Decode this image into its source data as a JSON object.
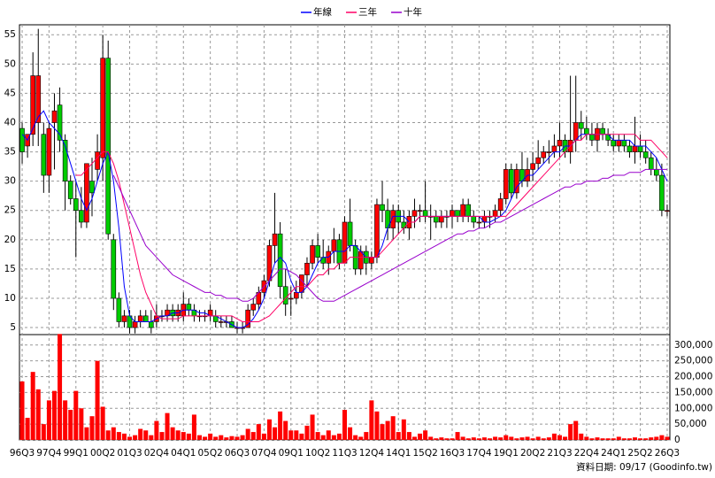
{
  "chart_data": {
    "type": "candlestick",
    "series": [
      {
        "name": "年線",
        "color": "#0000ff",
        "values": [
          38,
          37,
          39,
          41,
          42,
          40,
          39,
          38,
          36,
          33,
          30,
          27,
          25,
          27,
          30,
          33,
          35,
          30,
          22,
          12,
          7,
          6,
          6,
          6,
          6,
          6.5,
          7,
          7,
          7.5,
          7.5,
          8,
          8,
          8,
          7.5,
          7.5,
          7,
          7,
          6.5,
          6,
          5.5,
          5,
          5,
          5.5,
          6.5,
          8,
          10,
          13,
          16,
          17,
          16,
          13,
          11,
          11,
          12,
          14,
          16,
          17,
          17,
          18,
          18,
          18,
          19,
          19,
          18,
          17,
          17,
          17,
          19,
          22,
          24,
          24,
          24,
          23,
          23,
          24,
          24,
          24,
          24,
          24,
          24,
          24,
          24,
          24,
          24,
          24,
          24,
          23,
          23,
          23.5,
          24,
          25,
          27,
          29,
          30,
          31,
          31,
          32,
          33,
          34,
          35,
          35,
          36,
          36,
          37,
          38,
          38,
          38,
          38,
          38,
          38,
          37,
          37,
          37,
          37,
          36,
          36,
          36,
          35,
          34,
          32,
          30
        ]
      },
      {
        "name": "三年",
        "color": "#ff0066",
        "values": [
          null,
          null,
          null,
          null,
          null,
          null,
          null,
          null,
          null,
          null,
          31,
          31,
          32,
          33,
          34,
          35,
          35,
          33,
          30,
          26,
          22,
          18,
          14,
          11,
          9,
          7,
          6.5,
          6.5,
          6.5,
          6.5,
          7,
          7,
          7,
          7,
          7,
          7,
          7,
          7,
          7,
          7,
          6.5,
          6,
          6,
          6,
          6,
          6.5,
          7,
          8,
          9,
          10,
          11,
          12,
          12,
          12,
          13,
          14,
          14,
          15,
          15,
          16,
          16,
          17,
          17,
          17,
          17,
          17,
          17,
          18,
          19,
          20,
          21,
          22,
          23,
          23,
          24,
          24,
          24,
          24,
          24,
          24,
          24,
          24,
          24,
          24,
          24,
          24,
          24,
          24,
          24,
          24,
          24,
          25,
          26,
          27,
          28,
          29,
          30,
          31,
          32,
          33,
          34,
          35,
          36,
          37,
          37,
          38,
          38,
          38,
          38,
          38,
          38,
          38,
          38,
          38,
          38,
          37,
          37,
          37,
          36,
          35,
          34
        ]
      },
      {
        "name": "十年",
        "color": "#9900cc",
        "values": [
          null,
          null,
          null,
          null,
          null,
          null,
          null,
          null,
          null,
          null,
          null,
          null,
          null,
          null,
          null,
          null,
          null,
          31,
          29,
          27,
          25,
          23,
          21,
          19,
          18,
          17,
          16,
          15,
          14,
          13.5,
          13,
          12.5,
          12,
          11.5,
          11,
          11,
          10.5,
          10.5,
          10,
          10,
          10,
          9.5,
          9.5,
          10,
          11,
          12,
          13,
          14,
          15,
          15,
          14.5,
          14,
          13,
          12,
          11,
          10,
          9.5,
          9.5,
          9.5,
          10,
          10.5,
          11,
          11.5,
          12,
          12.5,
          13,
          13.5,
          14,
          14.5,
          15,
          15.5,
          16,
          16.5,
          17,
          17.5,
          18,
          18.5,
          19,
          19.5,
          20,
          20.5,
          21,
          21,
          21.5,
          21.5,
          22,
          22,
          22.5,
          23,
          23,
          23.5,
          24,
          24.5,
          25,
          25.5,
          26,
          26.5,
          27,
          27.5,
          28,
          28.5,
          29,
          29,
          29.5,
          29.5,
          30,
          30,
          30,
          30.5,
          30.5,
          31,
          31,
          31,
          31.5,
          31.5,
          31.5,
          32,
          32,
          32,
          32,
          32
        ]
      }
    ],
    "categories": [
      "96Q3",
      null,
      null,
      null,
      null,
      "97Q4",
      null,
      null,
      null,
      null,
      "99Q1",
      null,
      null,
      null,
      null,
      "00Q2",
      null,
      null,
      null,
      null,
      "01Q3",
      null,
      null,
      null,
      null,
      "02Q4",
      null,
      null,
      null,
      null,
      "04Q1",
      null,
      null,
      null,
      null,
      "05Q2",
      null,
      null,
      null,
      null,
      "06Q3",
      null,
      null,
      null,
      null,
      "07Q4",
      null,
      null,
      null,
      null,
      "09Q1",
      null,
      null,
      null,
      null,
      "10Q2",
      null,
      null,
      null,
      null,
      "11Q3",
      null,
      null,
      null,
      null,
      "12Q4",
      null,
      null,
      null,
      null,
      "14Q1",
      null,
      null,
      null,
      null,
      "15Q2",
      null,
      null,
      null,
      null,
      "16Q3",
      null,
      null,
      null,
      null,
      "17Q4",
      null,
      null,
      null,
      null,
      "19Q1",
      null,
      null,
      null,
      null,
      "20Q2",
      null,
      null,
      null,
      null,
      "21Q3",
      null,
      null,
      null,
      null,
      "22Q4",
      null,
      null,
      null,
      null,
      "24Q1",
      null,
      null,
      null,
      null,
      "25Q2",
      null,
      null,
      null,
      null,
      "26Q3"
    ],
    "open": [
      39,
      36,
      38,
      40,
      38,
      31,
      40,
      43,
      37,
      30,
      27,
      25,
      23,
      30,
      32,
      34,
      51,
      20,
      10,
      6,
      7,
      5,
      6,
      7,
      6,
      6,
      7,
      7,
      8,
      7,
      7,
      9,
      8,
      7,
      7,
      7,
      7,
      6,
      6,
      6,
      5,
      5,
      5,
      8,
      9,
      11,
      13,
      19,
      21,
      12,
      10,
      10,
      11,
      14,
      16,
      19,
      17,
      16,
      18,
      20,
      16,
      23,
      19,
      15,
      18,
      16,
      17,
      26,
      25,
      22,
      25,
      23,
      22,
      24,
      25,
      25,
      24,
      24,
      23,
      24,
      24,
      25,
      24,
      26,
      24,
      23,
      23,
      24,
      24,
      25,
      27,
      32,
      28,
      32,
      30,
      32,
      33,
      34,
      35,
      35,
      36,
      37,
      35,
      37,
      40,
      39,
      38,
      37,
      39,
      38,
      37,
      36,
      37,
      36,
      35,
      36,
      35,
      34,
      32,
      31,
      25
    ],
    "high": [
      40,
      38,
      52,
      56,
      40,
      40,
      45,
      46,
      38,
      31,
      30,
      29,
      33,
      34,
      38,
      55,
      54,
      21,
      11,
      8,
      8,
      7,
      8,
      8,
      8,
      9,
      8,
      9,
      9,
      9,
      11,
      10,
      9,
      8,
      8,
      9,
      8,
      7,
      7,
      7,
      6,
      6,
      9,
      10,
      12,
      14,
      20,
      28,
      23,
      15,
      12,
      13,
      14,
      17,
      20,
      21,
      20,
      19,
      22,
      21,
      24,
      27,
      20,
      19,
      19,
      18,
      27,
      30,
      27,
      26,
      26,
      25,
      25,
      27,
      26,
      30,
      26,
      25,
      25,
      25,
      26,
      25,
      27,
      27,
      25,
      24,
      25,
      25,
      26,
      28,
      33,
      33,
      33,
      35,
      34,
      35,
      37,
      36,
      37,
      38,
      40,
      38,
      48,
      48,
      42,
      41,
      40,
      40,
      40,
      39,
      38,
      38,
      38,
      37,
      41,
      38,
      37,
      35,
      34,
      33,
      26
    ],
    "low": [
      33,
      34,
      36,
      36,
      28,
      28,
      32,
      35,
      25,
      26,
      17,
      22,
      22,
      24,
      30,
      30,
      20,
      8,
      5,
      5,
      4,
      4,
      5,
      6,
      4,
      5,
      6,
      6,
      6,
      6,
      6,
      7,
      6,
      6,
      6,
      6,
      5,
      5,
      5,
      5,
      4,
      4,
      5,
      7,
      8,
      10,
      12,
      16,
      10,
      7,
      7,
      9,
      10,
      12,
      15,
      16,
      15,
      14,
      16,
      15,
      16,
      18,
      14,
      14,
      14,
      15,
      16,
      23,
      20,
      20,
      21,
      21,
      20,
      22,
      23,
      23,
      20,
      22,
      22,
      22,
      22,
      23,
      23,
      23,
      22,
      22,
      22,
      22,
      23,
      24,
      26,
      27,
      27,
      29,
      29,
      30,
      32,
      33,
      33,
      34,
      34,
      34,
      33,
      35,
      37,
      37,
      36,
      35,
      37,
      36,
      35,
      35,
      35,
      34,
      33,
      34,
      33,
      31,
      30,
      24,
      24
    ],
    "close": [
      35,
      38,
      48,
      48,
      31,
      39,
      42,
      37,
      30,
      27,
      25,
      23,
      33,
      28,
      35,
      51,
      21,
      10,
      6,
      7,
      5,
      6,
      7,
      6,
      5,
      7,
      7,
      8,
      7,
      8,
      9,
      8,
      7,
      7,
      7,
      8,
      6,
      6,
      6,
      5,
      5,
      5,
      8,
      9,
      11,
      13,
      19,
      21,
      12,
      9,
      10,
      11,
      14,
      16,
      19,
      17,
      16,
      18,
      20,
      16,
      23,
      19,
      15,
      18,
      16,
      17,
      26,
      25,
      22,
      25,
      23,
      22,
      24,
      25,
      25,
      24,
      24,
      23,
      24,
      24,
      25,
      24,
      26,
      24,
      23,
      23,
      24,
      24,
      25,
      27,
      32,
      28,
      32,
      30,
      32,
      33,
      34,
      35,
      35,
      36,
      37,
      35,
      37,
      40,
      39,
      38,
      37,
      39,
      38,
      37,
      36,
      37,
      36,
      35,
      36,
      35,
      34,
      32,
      31,
      25,
      25
    ],
    "volume": [
      185000,
      70000,
      215000,
      160000,
      50000,
      125000,
      155000,
      335000,
      125000,
      95000,
      155000,
      100000,
      40000,
      75000,
      250000,
      105000,
      30000,
      40000,
      25000,
      20000,
      10000,
      15000,
      35000,
      30000,
      15000,
      60000,
      25000,
      85000,
      40000,
      30000,
      25000,
      20000,
      80000,
      15000,
      10000,
      20000,
      10000,
      15000,
      8000,
      12000,
      10000,
      15000,
      35000,
      25000,
      50000,
      20000,
      65000,
      40000,
      90000,
      60000,
      30000,
      30000,
      20000,
      45000,
      80000,
      25000,
      15000,
      30000,
      15000,
      20000,
      95000,
      40000,
      15000,
      10000,
      25000,
      125000,
      90000,
      50000,
      60000,
      75000,
      25000,
      65000,
      25000,
      10000,
      20000,
      30000,
      10000,
      5000,
      8000,
      5000,
      5000,
      25000,
      10000,
      5000,
      8000,
      5000,
      8000,
      5000,
      10000,
      8000,
      15000,
      10000,
      5000,
      8000,
      10000,
      5000,
      10000,
      5000,
      8000,
      20000,
      15000,
      10000,
      50000,
      60000,
      20000,
      10000,
      5000,
      8000,
      5000,
      5000,
      5000,
      10000,
      5000,
      5000,
      8000,
      5000,
      5000,
      8000,
      10000,
      15000,
      10000
    ],
    "up_color": "#ff0000",
    "down_color": "#00cc00",
    "volume_color": "#ff0000",
    "ylim": [
      3.8,
      56.7
    ],
    "yticks": [
      5,
      10,
      15,
      20,
      25,
      30,
      35,
      40,
      45,
      50,
      55
    ],
    "y2lim": [
      0,
      333000
    ],
    "y2ticks": [
      0,
      {
        "value": 50000,
        "label": "50,000"
      },
      {
        "value": 100000,
        "label": "100,000"
      },
      {
        "value": 150000,
        "label": "150,000"
      },
      {
        "value": 200000,
        "label": "200,000"
      },
      {
        "value": 250000,
        "label": "250,000"
      },
      {
        "value": 300000,
        "label": "300,000"
      }
    ],
    "grid": true,
    "legend": "top",
    "footer": "資料日期: 09/17 (Goodinfo.tw)"
  }
}
